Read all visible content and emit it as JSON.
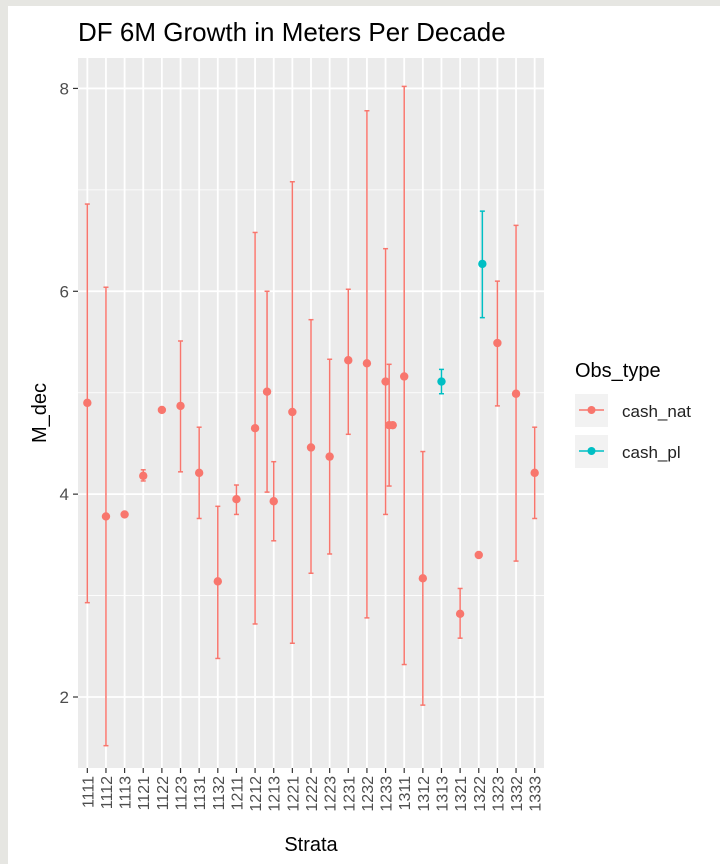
{
  "chart_data": {
    "type": "errorbar",
    "title": "DF 6M Growth in Meters Per Decade",
    "xlabel": "Strata",
    "ylabel": "M_dec",
    "ylim": [
      1.3,
      8.3
    ],
    "y_ticks": [
      2,
      4,
      6,
      8
    ],
    "grid": true,
    "legend_position": "right",
    "legend_title": "Obs_type",
    "categories": [
      "1111",
      "1112",
      "1113",
      "1121",
      "1122",
      "1123",
      "1131",
      "1132",
      "1211",
      "1212",
      "1213",
      "1221",
      "1222",
      "1223",
      "1231",
      "1232",
      "1233",
      "1311",
      "1312",
      "1313",
      "1321",
      "1322",
      "1323",
      "1332",
      "1333"
    ],
    "series": [
      {
        "name": "cash_nat",
        "color": "#F8766D",
        "points": [
          {
            "x": "1111",
            "y": 4.9,
            "ymin": 2.93,
            "ymax": 6.86
          },
          {
            "x": "1112",
            "y": 3.78,
            "ymin": 1.52,
            "ymax": 6.04
          },
          {
            "x": "1113",
            "y": 3.8,
            "ymin": 3.8,
            "ymax": 3.8
          },
          {
            "x": "1121",
            "y": 4.18,
            "ymin": 4.13,
            "ymax": 4.24
          },
          {
            "x": "1122",
            "y": 4.83,
            "ymin": 4.83,
            "ymax": 4.83
          },
          {
            "x": "1123",
            "y": 4.87,
            "ymin": 4.22,
            "ymax": 5.51
          },
          {
            "x": "1131",
            "y": 4.21,
            "ymin": 3.76,
            "ymax": 4.66
          },
          {
            "x": "1132",
            "y": 3.14,
            "ymin": 2.38,
            "ymax": 3.88
          },
          {
            "x": "1211",
            "y": 3.95,
            "ymin": 3.8,
            "ymax": 4.09
          },
          {
            "x": "1212",
            "y": 4.65,
            "ymin": 2.72,
            "ymax": 6.58
          },
          {
            "x": "1213",
            "y": 3.93,
            "ymin": 3.54,
            "ymax": 4.32
          },
          {
            "x": "1213",
            "y": 5.01,
            "ymin": 4.02,
            "ymax": 6.0
          },
          {
            "x": "1221",
            "y": 4.81,
            "ymin": 2.53,
            "ymax": 7.08
          },
          {
            "x": "1222",
            "y": 4.46,
            "ymin": 3.22,
            "ymax": 5.72
          },
          {
            "x": "1223",
            "y": 4.37,
            "ymin": 3.41,
            "ymax": 5.33
          },
          {
            "x": "1231",
            "y": 5.32,
            "ymin": 4.59,
            "ymax": 6.02
          },
          {
            "x": "1232",
            "y": 5.29,
            "ymin": 2.78,
            "ymax": 7.78
          },
          {
            "x": "1233",
            "y": 5.11,
            "ymin": 3.8,
            "ymax": 6.42
          },
          {
            "x": "1233",
            "y": 4.68,
            "ymin": 4.08,
            "ymax": 5.28
          },
          {
            "x": "1233",
            "y": 4.68,
            "ymin": 4.68,
            "ymax": 4.68
          },
          {
            "x": "1311",
            "y": 5.16,
            "ymin": 2.32,
            "ymax": 8.02
          },
          {
            "x": "1312",
            "y": 3.17,
            "ymin": 1.92,
            "ymax": 4.42
          },
          {
            "x": "1321",
            "y": 2.82,
            "ymin": 2.58,
            "ymax": 3.07
          },
          {
            "x": "1322",
            "y": 3.4,
            "ymin": 3.4,
            "ymax": 3.4
          },
          {
            "x": "1323",
            "y": 5.49,
            "ymin": 4.87,
            "ymax": 6.1
          },
          {
            "x": "1332",
            "y": 4.99,
            "ymin": 3.34,
            "ymax": 6.65
          },
          {
            "x": "1333",
            "y": 4.21,
            "ymin": 3.76,
            "ymax": 4.66
          }
        ]
      },
      {
        "name": "cash_pl",
        "color": "#00BFC4",
        "points": [
          {
            "x": "1313",
            "y": 5.11,
            "ymin": 4.99,
            "ymax": 5.23
          },
          {
            "x": "1322",
            "y": 6.27,
            "ymin": 5.74,
            "ymax": 6.79
          }
        ]
      }
    ]
  }
}
